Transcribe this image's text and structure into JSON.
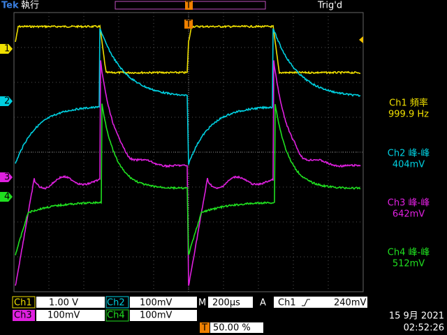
{
  "header": {
    "brand": "Tek",
    "status": "執行",
    "trigger_status": "Trig'd"
  },
  "markers": {
    "ch1": "1",
    "ch2": "2",
    "ch3": "3",
    "ch4": "4",
    "trigger": "T"
  },
  "measurements": [
    {
      "label": "Ch1 頻率",
      "value": "999.9 Hz"
    },
    {
      "label": "Ch2 峰-峰",
      "value": "404mV"
    },
    {
      "label": "Ch3 峰-峰",
      "value": "642mV"
    },
    {
      "label": "Ch4 峰-峰",
      "value": "512mV"
    }
  ],
  "footer": {
    "ch1": {
      "name": "Ch1",
      "scale": "1.00 V"
    },
    "ch2": {
      "name": "Ch2",
      "scale": "100mV"
    },
    "ch3": {
      "name": "Ch3",
      "scale": "100mV"
    },
    "ch4": {
      "name": "Ch4",
      "scale": "100mV"
    },
    "timebase": {
      "label": "M",
      "value": "200µs"
    },
    "trigger": {
      "mode": "A",
      "source": "Ch1",
      "level": "240mV"
    },
    "trigger_position": {
      "marker": "T",
      "value": "50.00 %"
    },
    "date": "15 9月 2021",
    "time": "02:52:26"
  }
}
